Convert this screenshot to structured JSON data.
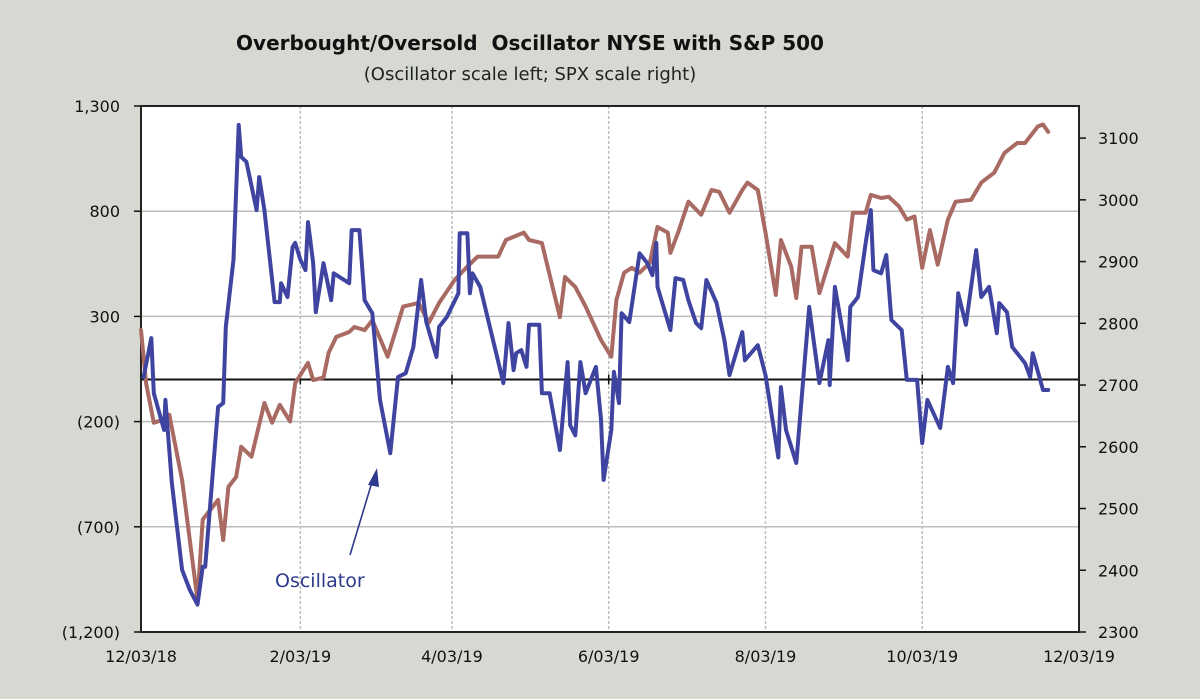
{
  "chart_data": {
    "type": "line",
    "title": "Overbought/Oversold  Oscillator NYSE with S&P 500",
    "subtitle": "(Oscillator scale left; SPX scale right)",
    "annotation": "Oscillator",
    "x_unit": "days since 12/03/18",
    "x_range": [
      0,
      365
    ],
    "x_ticks": [
      {
        "label": "12/03/18",
        "day": 0
      },
      {
        "label": "2/03/19",
        "day": 62
      },
      {
        "label": "4/03/19",
        "day": 121
      },
      {
        "label": "6/03/19",
        "day": 182
      },
      {
        "label": "8/03/19",
        "day": 243
      },
      {
        "label": "10/03/19",
        "day": 304
      },
      {
        "label": "12/03/19",
        "day": 365
      }
    ],
    "y_left": {
      "range": [
        -1200,
        1300
      ],
      "ticks": [
        1300,
        800,
        300,
        -200,
        -700,
        -1200
      ],
      "labels": [
        "1,300",
        "800",
        "300",
        "(200)",
        "(700)",
        "(1,200)"
      ]
    },
    "y_right": {
      "range": [
        2300,
        3152
      ],
      "ticks": [
        3100,
        3000,
        2900,
        2800,
        2700,
        2600,
        2500,
        2400,
        2300
      ],
      "labels": [
        "3100",
        "3000",
        "2900",
        "2800",
        "2700",
        "2600",
        "2500",
        "2400",
        "2300"
      ]
    },
    "grid": true,
    "series": [
      {
        "name": "Oscillator",
        "axis": "left",
        "color": "#3f44a0",
        "points": [
          [
            1,
            12
          ],
          [
            4,
            197
          ],
          [
            5,
            -65
          ],
          [
            9,
            -240
          ],
          [
            9.5,
            -97
          ],
          [
            12,
            -490
          ],
          [
            16,
            -905
          ],
          [
            19,
            -1000
          ],
          [
            22,
            -1070
          ],
          [
            24,
            -890
          ],
          [
            25,
            -890
          ],
          [
            30,
            -130
          ],
          [
            32,
            -112
          ],
          [
            33,
            250
          ],
          [
            36,
            570
          ],
          [
            38,
            1210
          ],
          [
            39,
            1058
          ],
          [
            41,
            1035
          ],
          [
            45,
            805
          ],
          [
            46,
            962
          ],
          [
            48,
            805
          ],
          [
            52,
            368
          ],
          [
            54,
            368
          ],
          [
            54.5,
            458
          ],
          [
            57,
            392
          ],
          [
            59,
            630
          ],
          [
            60,
            650
          ],
          [
            62,
            570
          ],
          [
            64,
            520
          ],
          [
            65,
            748
          ],
          [
            67,
            553
          ],
          [
            68,
            320
          ],
          [
            71,
            553
          ],
          [
            74,
            377
          ],
          [
            75,
            505
          ],
          [
            81,
            458
          ],
          [
            82,
            710
          ],
          [
            85,
            710
          ],
          [
            87,
            377
          ],
          [
            90,
            315
          ],
          [
            93,
            -97
          ],
          [
            97,
            -350
          ],
          [
            100,
            12
          ],
          [
            103,
            30
          ],
          [
            106,
            155
          ],
          [
            109,
            473
          ],
          [
            111,
            273
          ],
          [
            115,
            107
          ],
          [
            116,
            250
          ],
          [
            119,
            297
          ],
          [
            123.5,
            410
          ],
          [
            124,
            695
          ],
          [
            127,
            695
          ],
          [
            128,
            410
          ],
          [
            129,
            505
          ],
          [
            132,
            440
          ],
          [
            141,
            -17
          ],
          [
            143,
            268
          ],
          [
            145,
            45
          ],
          [
            146,
            125
          ],
          [
            148,
            140
          ],
          [
            150,
            60
          ],
          [
            151,
            260
          ],
          [
            155,
            260
          ],
          [
            156,
            -65
          ],
          [
            159,
            -65
          ],
          [
            163,
            -335
          ],
          [
            166,
            83
          ],
          [
            167,
            -217
          ],
          [
            169,
            -265
          ],
          [
            171,
            83
          ],
          [
            173,
            -65
          ],
          [
            177,
            60
          ],
          [
            179,
            -190
          ],
          [
            180,
            -477
          ],
          [
            183,
            -240
          ],
          [
            184,
            36
          ],
          [
            186,
            -112
          ],
          [
            187,
            315
          ],
          [
            190,
            273
          ],
          [
            194,
            600
          ],
          [
            197,
            553
          ],
          [
            199,
            496
          ],
          [
            200.5,
            650
          ],
          [
            201,
            440
          ],
          [
            206,
            235
          ],
          [
            208,
            482
          ],
          [
            211,
            473
          ],
          [
            213,
            377
          ],
          [
            216,
            268
          ],
          [
            218,
            244
          ],
          [
            220,
            473
          ],
          [
            224,
            363
          ],
          [
            227,
            187
          ],
          [
            229,
            21
          ],
          [
            234,
            225
          ],
          [
            235,
            92
          ],
          [
            240,
            163
          ],
          [
            243,
            21
          ],
          [
            248,
            -370
          ],
          [
            249,
            -36
          ],
          [
            251,
            -240
          ],
          [
            255,
            -397
          ],
          [
            260,
            345
          ],
          [
            262,
            163
          ],
          [
            264,
            -17
          ],
          [
            267.5,
            187
          ],
          [
            268,
            -26
          ],
          [
            270,
            440
          ],
          [
            275,
            92
          ],
          [
            276,
            345
          ],
          [
            279,
            392
          ],
          [
            282,
            650
          ],
          [
            284,
            805
          ],
          [
            285,
            520
          ],
          [
            288,
            505
          ],
          [
            290,
            592
          ],
          [
            292,
            283
          ],
          [
            296,
            235
          ],
          [
            298,
            -2
          ],
          [
            302,
            -2
          ],
          [
            304,
            -302
          ],
          [
            306,
            -97
          ],
          [
            311,
            -230
          ],
          [
            314,
            60
          ],
          [
            316,
            -17
          ],
          [
            318,
            410
          ],
          [
            321,
            260
          ],
          [
            325,
            615
          ],
          [
            327,
            392
          ],
          [
            330,
            440
          ],
          [
            333,
            220
          ],
          [
            334,
            363
          ],
          [
            337,
            320
          ],
          [
            339,
            155
          ],
          [
            344,
            78
          ],
          [
            346,
            12
          ],
          [
            347,
            125
          ],
          [
            351,
            -50
          ],
          [
            353,
            -50
          ]
        ]
      },
      {
        "name": "S&P 500",
        "axis": "right",
        "color": "#a86a62",
        "points": [
          [
            0,
            2789
          ],
          [
            2,
            2703
          ],
          [
            5,
            2639
          ],
          [
            9,
            2644
          ],
          [
            11,
            2652
          ],
          [
            16,
            2546
          ],
          [
            22,
            2352
          ],
          [
            24,
            2482
          ],
          [
            30,
            2514
          ],
          [
            32,
            2449
          ],
          [
            34,
            2535
          ],
          [
            37,
            2551
          ],
          [
            39,
            2600
          ],
          [
            43,
            2584
          ],
          [
            48,
            2671
          ],
          [
            51,
            2639
          ],
          [
            54,
            2668
          ],
          [
            58,
            2641
          ],
          [
            60,
            2703
          ],
          [
            65,
            2736
          ],
          [
            67,
            2708
          ],
          [
            71,
            2712
          ],
          [
            73,
            2752
          ],
          [
            76,
            2778
          ],
          [
            81,
            2786
          ],
          [
            83,
            2794
          ],
          [
            87,
            2789
          ],
          [
            90,
            2805
          ],
          [
            96,
            2746
          ],
          [
            102,
            2827
          ],
          [
            108,
            2833
          ],
          [
            112,
            2801
          ],
          [
            116,
            2833
          ],
          [
            122,
            2870
          ],
          [
            127,
            2892
          ],
          [
            131,
            2908
          ],
          [
            139,
            2908
          ],
          [
            142,
            2935
          ],
          [
            149,
            2947
          ],
          [
            151,
            2935
          ],
          [
            156,
            2930
          ],
          [
            163,
            2810
          ],
          [
            165,
            2875
          ],
          [
            169,
            2859
          ],
          [
            173,
            2827
          ],
          [
            179,
            2773
          ],
          [
            183,
            2746
          ],
          [
            185,
            2838
          ],
          [
            188,
            2882
          ],
          [
            191,
            2890
          ],
          [
            194,
            2882
          ],
          [
            198,
            2898
          ],
          [
            201,
            2956
          ],
          [
            205,
            2947
          ],
          [
            206,
            2914
          ],
          [
            209,
            2947
          ],
          [
            213,
            2997
          ],
          [
            218,
            2976
          ],
          [
            222,
            3016
          ],
          [
            225,
            3013
          ],
          [
            229,
            2979
          ],
          [
            234,
            3016
          ],
          [
            236,
            3028
          ],
          [
            240,
            3016
          ],
          [
            243,
            2947
          ],
          [
            247,
            2846
          ],
          [
            249,
            2935
          ],
          [
            253,
            2892
          ],
          [
            255,
            2841
          ],
          [
            257,
            2924
          ],
          [
            261,
            2924
          ],
          [
            264,
            2849
          ],
          [
            270,
            2930
          ],
          [
            275,
            2908
          ],
          [
            277,
            2979
          ],
          [
            282,
            2979
          ],
          [
            284,
            3008
          ],
          [
            288,
            3003
          ],
          [
            291,
            3005
          ],
          [
            295,
            2989
          ],
          [
            298,
            2968
          ],
          [
            301,
            2973
          ],
          [
            304,
            2890
          ],
          [
            307,
            2951
          ],
          [
            310,
            2895
          ],
          [
            314,
            2968
          ],
          [
            317,
            2997
          ],
          [
            323,
            3000
          ],
          [
            327,
            3028
          ],
          [
            332,
            3044
          ],
          [
            336,
            3076
          ],
          [
            341,
            3092
          ],
          [
            344,
            3092
          ],
          [
            349,
            3119
          ],
          [
            351,
            3122
          ],
          [
            353,
            3110
          ]
        ]
      }
    ]
  }
}
